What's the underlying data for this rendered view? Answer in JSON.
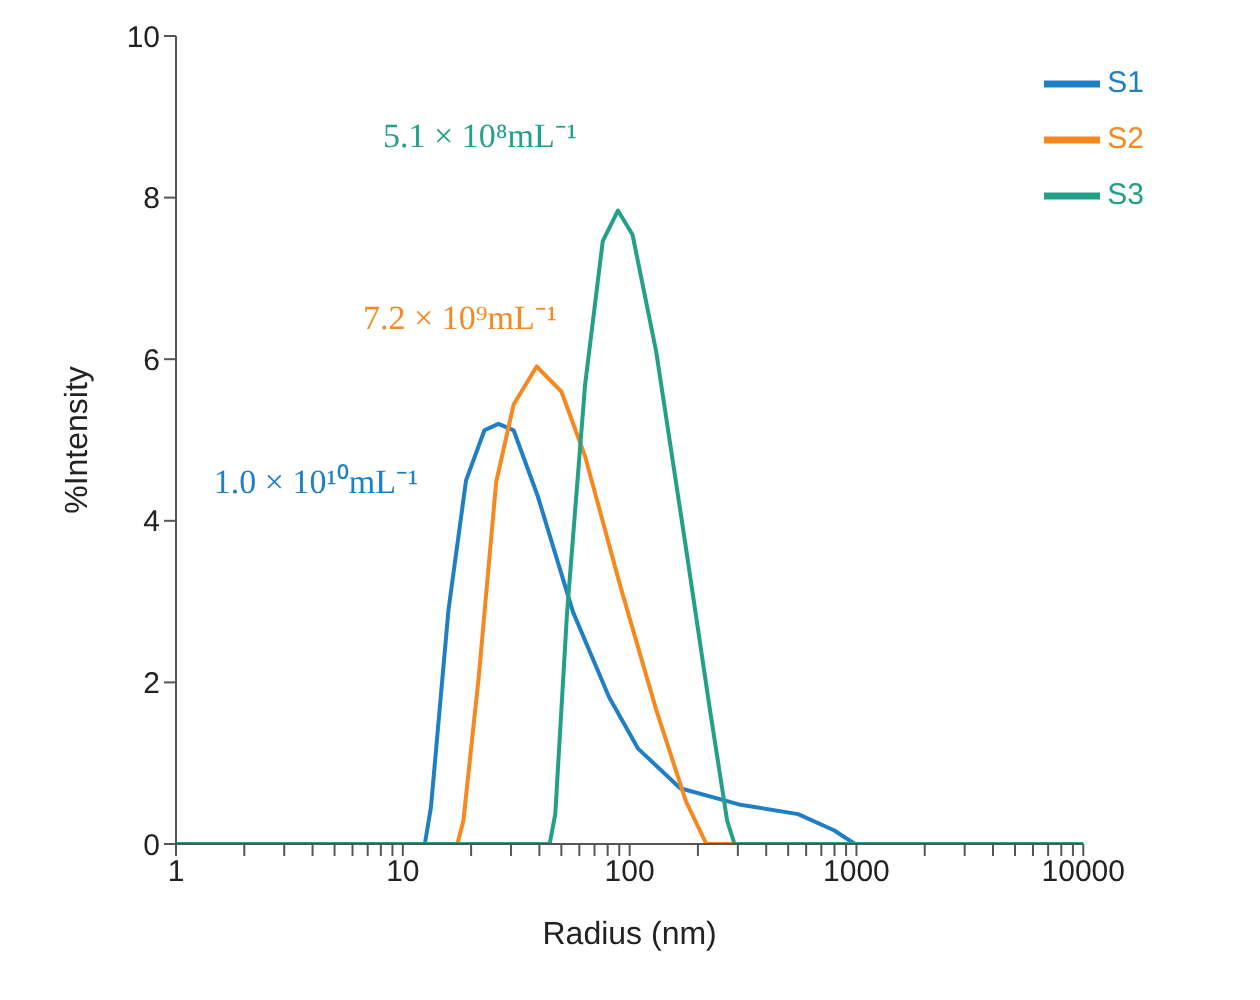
{
  "chart_data": {
    "type": "line",
    "xlabel": "Radius (nm)",
    "ylabel": "%Intensity",
    "log": "x",
    "xlim": [
      1,
      10000
    ],
    "ylim": [
      0,
      10
    ],
    "yticks": [
      0,
      2,
      4,
      6,
      8,
      10
    ],
    "xticks": [
      1,
      {
        "value": 2,
        "label": null
      },
      {
        "value": 3,
        "label": null
      },
      {
        "value": 4,
        "label": null
      },
      {
        "value": 5,
        "label": null
      },
      {
        "value": 6,
        "label": null
      },
      {
        "value": 7,
        "label": null
      },
      {
        "value": 8,
        "label": null
      },
      {
        "value": 9,
        "label": null
      },
      10,
      {
        "value": 20,
        "label": null
      },
      {
        "value": 30,
        "label": null
      },
      {
        "value": 40,
        "label": null
      },
      {
        "value": 50,
        "label": null
      },
      {
        "value": 60,
        "label": null
      },
      {
        "value": 70,
        "label": null
      },
      {
        "value": 80,
        "label": null
      },
      {
        "value": 90,
        "label": null
      },
      100,
      {
        "value": 200,
        "label": null
      },
      {
        "value": 300,
        "label": null
      },
      {
        "value": 400,
        "label": null
      },
      {
        "value": 500,
        "label": null
      },
      {
        "value": 600,
        "label": null
      },
      {
        "value": 700,
        "label": null
      },
      {
        "value": 800,
        "label": null
      },
      {
        "value": 900,
        "label": null
      },
      1000,
      {
        "value": 2000,
        "label": null
      },
      {
        "value": 3000,
        "label": null
      },
      {
        "value": 4000,
        "label": null
      },
      {
        "value": 5000,
        "label": null
      },
      {
        "value": 6000,
        "label": null
      },
      {
        "value": 7000,
        "label": null
      },
      {
        "value": 8000,
        "label": null
      },
      {
        "value": 9000,
        "label": null
      },
      10000
    ],
    "grid": false,
    "legend": "top right",
    "marker": "none",
    "line_style": "solid",
    "series": [
      {
        "name": "S1",
        "color": "#1f7fc4",
        "x": [
          1,
          12.5,
          13.3,
          15.9,
          19.0,
          22.9,
          26.4,
          30.8,
          39.4,
          56.3,
          81.1,
          109,
          167,
          269,
          303,
          553,
          795,
          985,
          10000
        ],
        "values": [
          0,
          0,
          0.45,
          2.9,
          4.5,
          5.12,
          5.2,
          5.12,
          4.3,
          2.87,
          1.82,
          1.18,
          0.69,
          0.53,
          0.49,
          0.37,
          0.17,
          0,
          0
        ]
      },
      {
        "name": "S2",
        "color": "#f5891f",
        "x": [
          1,
          17.4,
          18.5,
          21.6,
          25.8,
          30.8,
          38.9,
          50,
          63.6,
          91,
          131,
          177,
          218,
          10000
        ],
        "values": [
          0,
          0,
          0.29,
          2.06,
          4.48,
          5.44,
          5.91,
          5.6,
          4.8,
          3.19,
          1.66,
          0.53,
          0,
          0
        ]
      },
      {
        "name": "S3",
        "color": "#23a087",
        "x": [
          1,
          44.4,
          47,
          53,
          63.6,
          76.1,
          88.8,
          103,
          131,
          177,
          226,
          269,
          290,
          10000
        ],
        "values": [
          0,
          0,
          0.37,
          2.87,
          5.68,
          7.46,
          7.84,
          7.54,
          6.09,
          3.67,
          1.66,
          0.29,
          0,
          0
        ]
      }
    ],
    "annotations": [
      "1.0 × 10¹⁰mL⁻¹",
      "7.2 × 10⁹mL⁻¹",
      "5.1 × 10⁸mL⁻¹"
    ]
  }
}
